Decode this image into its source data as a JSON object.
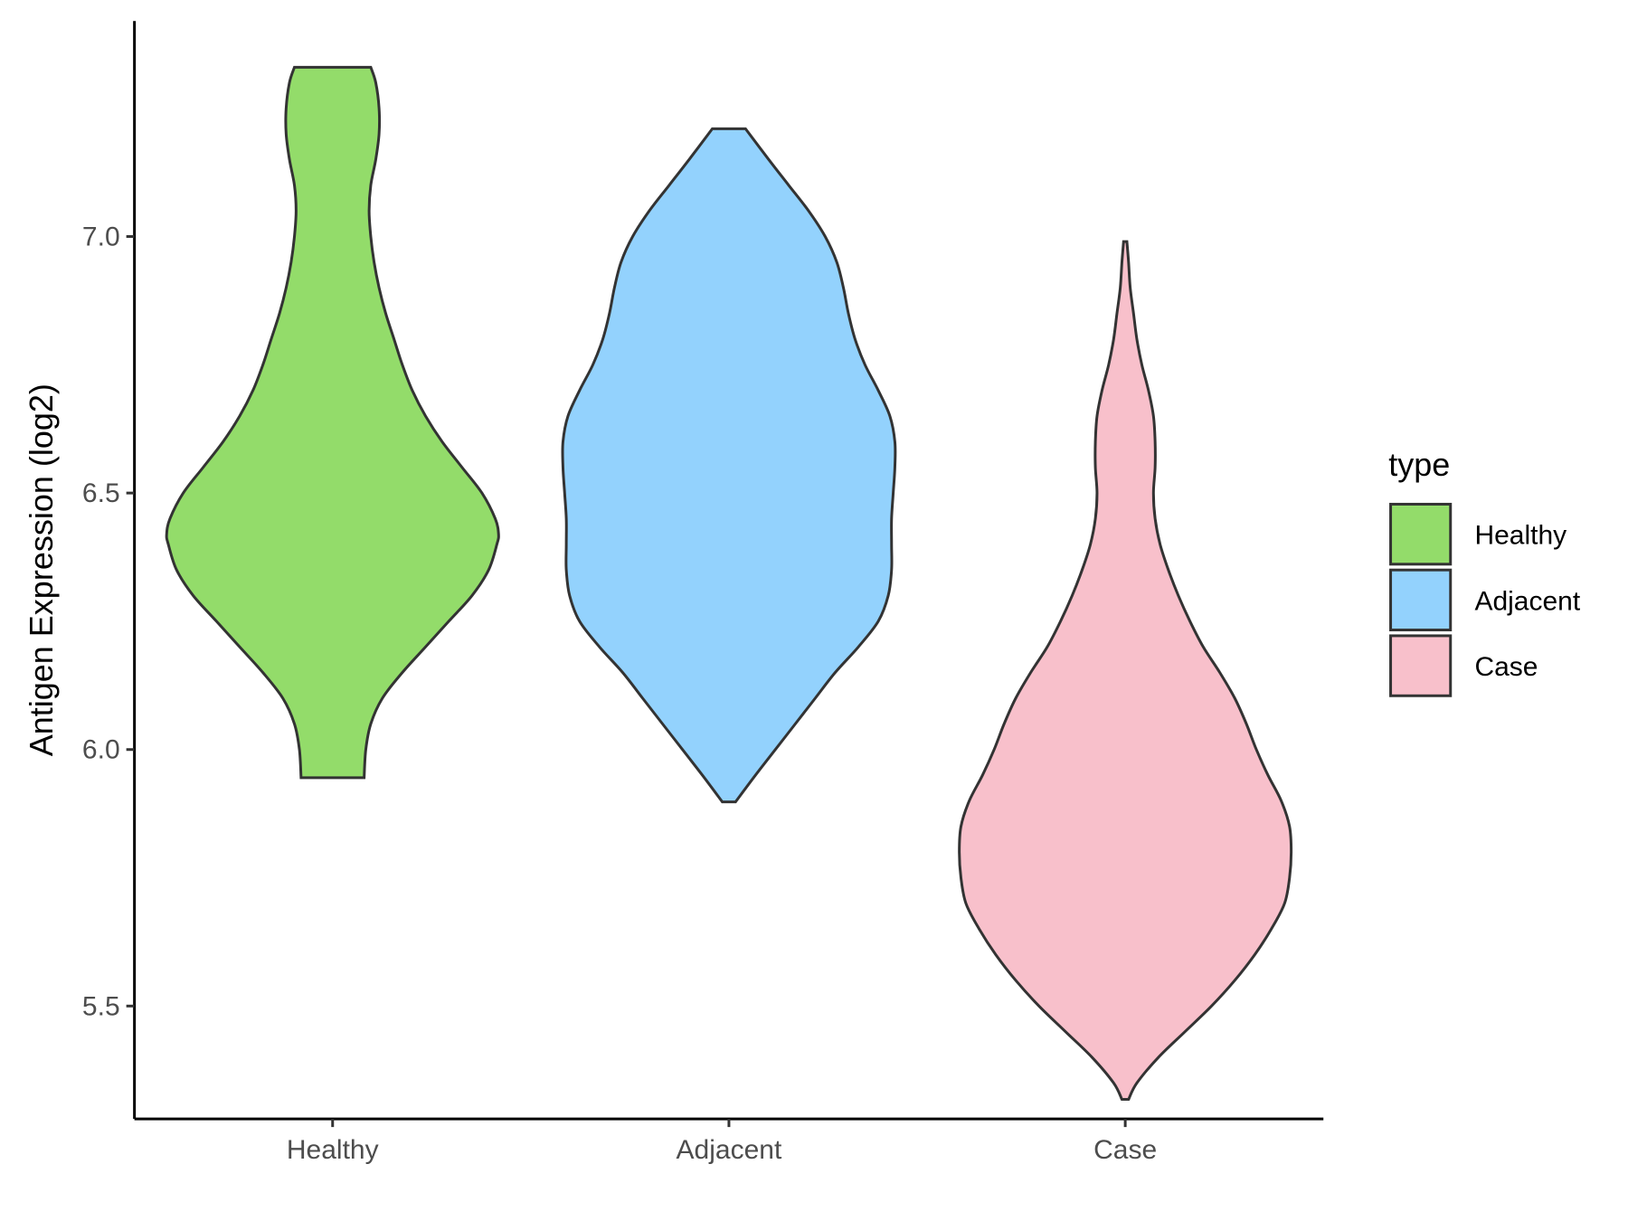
{
  "chart_data": {
    "type": "violin",
    "title": "",
    "xlabel": "",
    "ylabel": "Antigen Expression (log2)",
    "ylim": [
      5.28,
      7.42
    ],
    "yticks": [
      5.5,
      6.0,
      6.5,
      7.0
    ],
    "ytick_labels": [
      "5.5",
      "6.0",
      "6.5",
      "7.0"
    ],
    "categories": [
      "Healthy",
      "Adjacent",
      "Case"
    ],
    "grid": false,
    "legend": {
      "title": "type",
      "placement": "right",
      "entries": [
        "Healthy",
        "Adjacent",
        "Case"
      ]
    },
    "series": [
      {
        "name": "Healthy",
        "color": "#93dc6a",
        "min": 5.945,
        "max": 7.33,
        "profile": [
          [
            5.945,
            0.19
          ],
          [
            6.0,
            0.2
          ],
          [
            6.05,
            0.23
          ],
          [
            6.1,
            0.3
          ],
          [
            6.15,
            0.42
          ],
          [
            6.2,
            0.56
          ],
          [
            6.25,
            0.7
          ],
          [
            6.3,
            0.84
          ],
          [
            6.35,
            0.94
          ],
          [
            6.4,
            0.99
          ],
          [
            6.42,
            1.0
          ],
          [
            6.45,
            0.98
          ],
          [
            6.5,
            0.9
          ],
          [
            6.55,
            0.78
          ],
          [
            6.6,
            0.66
          ],
          [
            6.65,
            0.56
          ],
          [
            6.7,
            0.48
          ],
          [
            6.75,
            0.42
          ],
          [
            6.8,
            0.37
          ],
          [
            6.85,
            0.32
          ],
          [
            6.9,
            0.28
          ],
          [
            6.95,
            0.25
          ],
          [
            7.0,
            0.23
          ],
          [
            7.05,
            0.22
          ],
          [
            7.1,
            0.23
          ],
          [
            7.15,
            0.26
          ],
          [
            7.2,
            0.28
          ],
          [
            7.25,
            0.28
          ],
          [
            7.3,
            0.26
          ],
          [
            7.33,
            0.23
          ]
        ]
      },
      {
        "name": "Adjacent",
        "color": "#93d2fd",
        "min": 5.898,
        "max": 7.21,
        "profile": [
          [
            5.898,
            0.04
          ],
          [
            5.95,
            0.16
          ],
          [
            6.0,
            0.28
          ],
          [
            6.05,
            0.4
          ],
          [
            6.1,
            0.52
          ],
          [
            6.15,
            0.64
          ],
          [
            6.2,
            0.78
          ],
          [
            6.25,
            0.9
          ],
          [
            6.3,
            0.96
          ],
          [
            6.35,
            0.98
          ],
          [
            6.4,
            0.98
          ],
          [
            6.45,
            0.98
          ],
          [
            6.5,
            0.99
          ],
          [
            6.55,
            1.0
          ],
          [
            6.6,
            1.0
          ],
          [
            6.65,
            0.97
          ],
          [
            6.7,
            0.9
          ],
          [
            6.75,
            0.82
          ],
          [
            6.8,
            0.76
          ],
          [
            6.85,
            0.72
          ],
          [
            6.9,
            0.69
          ],
          [
            6.95,
            0.65
          ],
          [
            7.0,
            0.58
          ],
          [
            7.05,
            0.48
          ],
          [
            7.1,
            0.36
          ],
          [
            7.15,
            0.24
          ],
          [
            7.21,
            0.1
          ]
        ]
      },
      {
        "name": "Case",
        "color": "#f8c0cb",
        "min": 5.318,
        "max": 6.99,
        "profile": [
          [
            5.318,
            0.02
          ],
          [
            5.35,
            0.07
          ],
          [
            5.4,
            0.2
          ],
          [
            5.45,
            0.36
          ],
          [
            5.5,
            0.52
          ],
          [
            5.55,
            0.66
          ],
          [
            5.6,
            0.78
          ],
          [
            5.65,
            0.88
          ],
          [
            5.7,
            0.96
          ],
          [
            5.75,
            0.99
          ],
          [
            5.8,
            1.0
          ],
          [
            5.85,
            0.99
          ],
          [
            5.9,
            0.94
          ],
          [
            5.95,
            0.86
          ],
          [
            6.0,
            0.79
          ],
          [
            6.05,
            0.73
          ],
          [
            6.1,
            0.66
          ],
          [
            6.15,
            0.57
          ],
          [
            6.2,
            0.47
          ],
          [
            6.25,
            0.39
          ],
          [
            6.3,
            0.32
          ],
          [
            6.35,
            0.26
          ],
          [
            6.4,
            0.21
          ],
          [
            6.45,
            0.18
          ],
          [
            6.5,
            0.17
          ],
          [
            6.55,
            0.18
          ],
          [
            6.6,
            0.18
          ],
          [
            6.65,
            0.17
          ],
          [
            6.7,
            0.14
          ],
          [
            6.75,
            0.1
          ],
          [
            6.8,
            0.07
          ],
          [
            6.85,
            0.05
          ],
          [
            6.9,
            0.03
          ],
          [
            6.95,
            0.02
          ],
          [
            6.99,
            0.01
          ]
        ]
      }
    ]
  }
}
